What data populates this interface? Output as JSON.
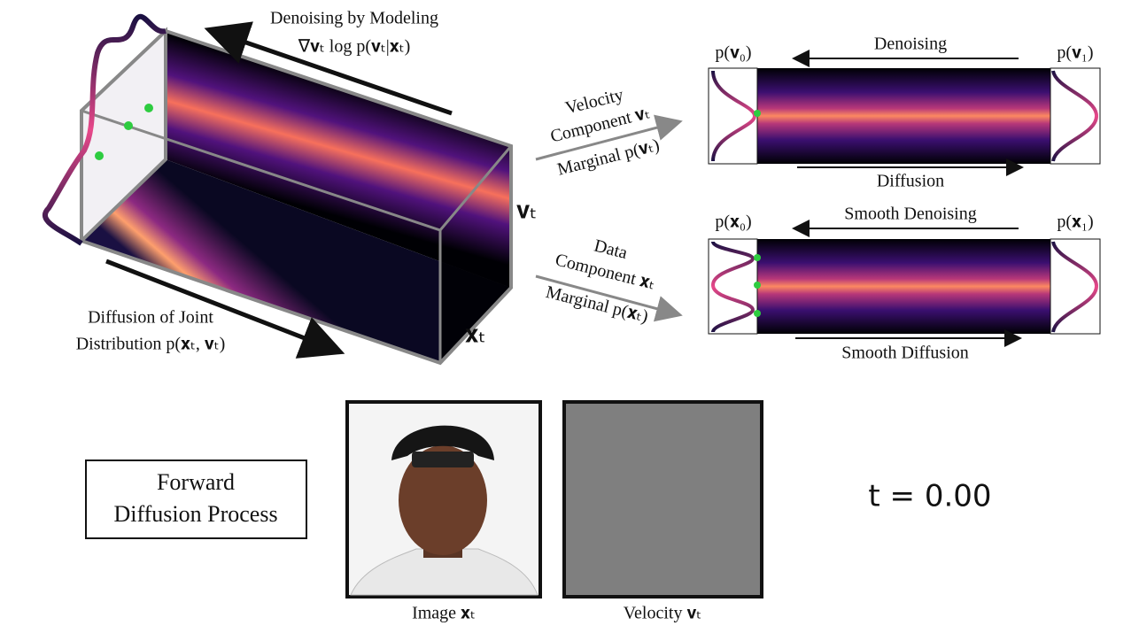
{
  "joint": {
    "denoise_title": "Denoising by Modeling",
    "denoise_formula": "∇𝐯ₜ log p(𝐯ₜ|𝐱ₜ)",
    "axis_v": "𝐯ₜ",
    "axis_x": "𝐱ₜ",
    "diffusion_line1": "Diffusion of Joint",
    "diffusion_line2": "Distribution p(𝐱ₜ, 𝐯ₜ)"
  },
  "velocity": {
    "arrow_line1": "Velocity",
    "arrow_line2": "Component 𝐯ₜ",
    "arrow_line3": "Marginal p(𝐯ₜ)",
    "left_label": "p(𝐯₀)",
    "right_label": "p(𝐯₁)",
    "top_label": "Denoising",
    "bottom_label": "Diffusion"
  },
  "data": {
    "arrow_line1": "Data",
    "arrow_line2": "Component 𝐱ₜ",
    "arrow_line3": "Marginal p(𝐱ₜ)",
    "left_label": "p(𝐱₀)",
    "right_label": "p(𝐱₁)",
    "top_label": "Smooth Denoising",
    "bottom_label": "Smooth Diffusion"
  },
  "process": {
    "line1": "Forward",
    "line2": "Diffusion Process"
  },
  "panels": {
    "image_caption": "Image 𝐱ₜ",
    "velocity_caption": "Velocity 𝐯ₜ"
  },
  "time": "t = 0.00"
}
